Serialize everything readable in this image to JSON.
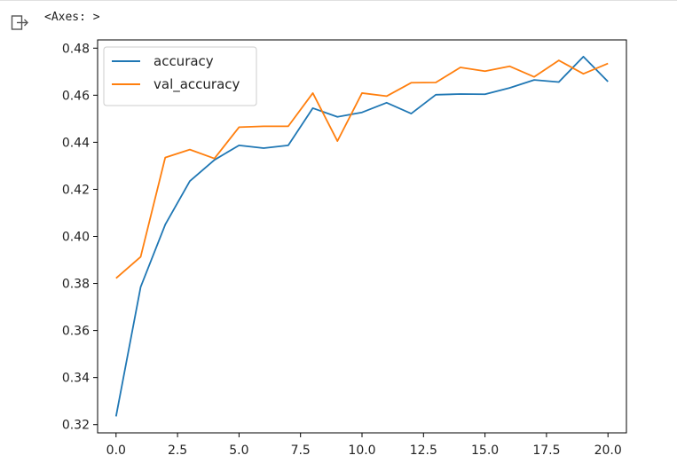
{
  "cell": {
    "output_text": "<Axes: >",
    "icon": "output-arrow-icon"
  },
  "chart_data": {
    "type": "line",
    "title": "",
    "xlabel": "",
    "ylabel": "",
    "x": [
      0,
      1,
      2,
      3,
      4,
      5,
      6,
      7,
      8,
      9,
      10,
      11,
      12,
      13,
      14,
      15,
      16,
      17,
      18,
      19,
      20
    ],
    "xlim": [
      -0.75,
      20.75
    ],
    "ylim": [
      0.3165,
      0.4835
    ],
    "xticks": [
      0.0,
      2.5,
      5.0,
      7.5,
      10.0,
      12.5,
      15.0,
      17.5,
      20.0
    ],
    "xtick_labels": [
      "0.0",
      "2.5",
      "5.0",
      "7.5",
      "10.0",
      "12.5",
      "15.0",
      "17.5",
      "20.0"
    ],
    "yticks": [
      0.32,
      0.34,
      0.36,
      0.38,
      0.4,
      0.42,
      0.44,
      0.46,
      0.48
    ],
    "ytick_labels": [
      "0.32",
      "0.34",
      "0.36",
      "0.38",
      "0.40",
      "0.42",
      "0.44",
      "0.46",
      "0.48"
    ],
    "grid": false,
    "legend_position": "top-left",
    "series": [
      {
        "name": "accuracy",
        "color": "#1f77b4",
        "values": [
          0.3235,
          0.3785,
          0.405,
          0.4235,
          0.4325,
          0.4387,
          0.4375,
          0.4387,
          0.4545,
          0.4508,
          0.4527,
          0.4568,
          0.4522,
          0.4602,
          0.4605,
          0.4604,
          0.4631,
          0.4665,
          0.4656,
          0.4764,
          0.4658
        ]
      },
      {
        "name": "val_accuracy",
        "color": "#ff7f0e",
        "values": [
          0.3822,
          0.3913,
          0.4335,
          0.4369,
          0.4331,
          0.4464,
          0.4468,
          0.4468,
          0.4609,
          0.4405,
          0.4609,
          0.4596,
          0.4653,
          0.4654,
          0.4718,
          0.4702,
          0.4723,
          0.4678,
          0.4748,
          0.4691,
          0.4735
        ]
      }
    ]
  }
}
